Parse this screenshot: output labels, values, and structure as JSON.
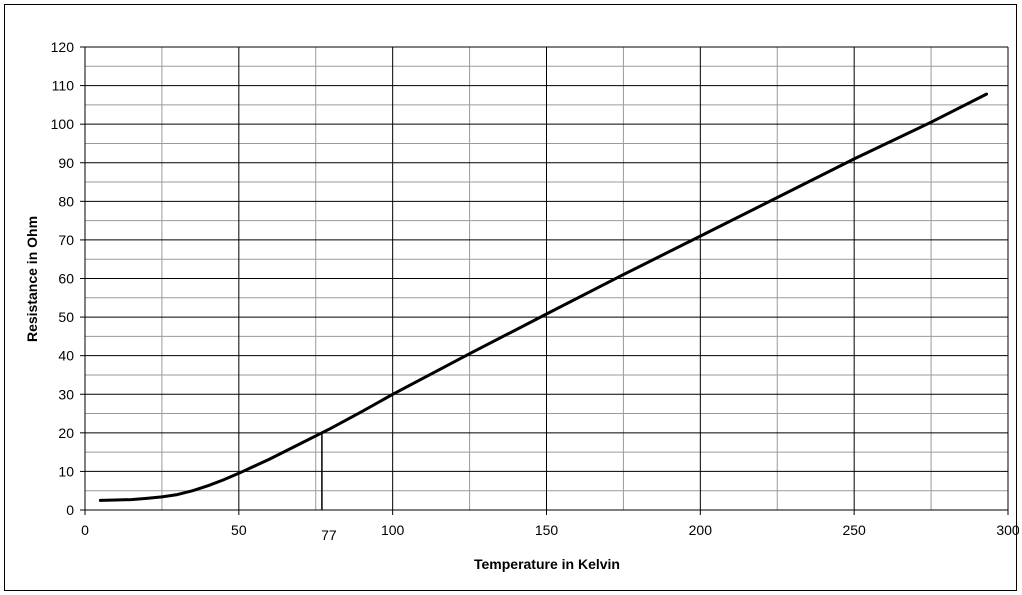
{
  "chart_data": {
    "type": "line",
    "title": "",
    "xlabel": "Temperature in Kelvin",
    "ylabel": "Resistance in Ohm",
    "xlim": [
      0,
      300
    ],
    "ylim": [
      0,
      120
    ],
    "x_ticks": [
      0,
      50,
      100,
      150,
      200,
      250,
      300
    ],
    "y_ticks": [
      0,
      10,
      20,
      30,
      40,
      50,
      60,
      70,
      80,
      90,
      100,
      110,
      120
    ],
    "grid": true,
    "legend": "none",
    "series": [
      {
        "x": [
          5,
          10,
          15,
          20,
          25,
          30,
          35,
          40,
          45,
          50,
          60,
          70,
          77,
          80,
          90,
          100,
          125,
          150,
          175,
          200,
          225,
          250,
          275,
          293
        ],
        "y": [
          2.5,
          2.6,
          2.7,
          3.0,
          3.4,
          4.0,
          5.0,
          6.3,
          7.8,
          9.5,
          13.2,
          17.2,
          20.0,
          21.2,
          25.5,
          30.0,
          40.5,
          50.8,
          61.0,
          71.0,
          81.0,
          91.0,
          100.5,
          107.8
        ],
        "color": "#000000"
      }
    ],
    "annotations": [
      {
        "label": "77",
        "x": 77,
        "y": 20
      }
    ]
  }
}
